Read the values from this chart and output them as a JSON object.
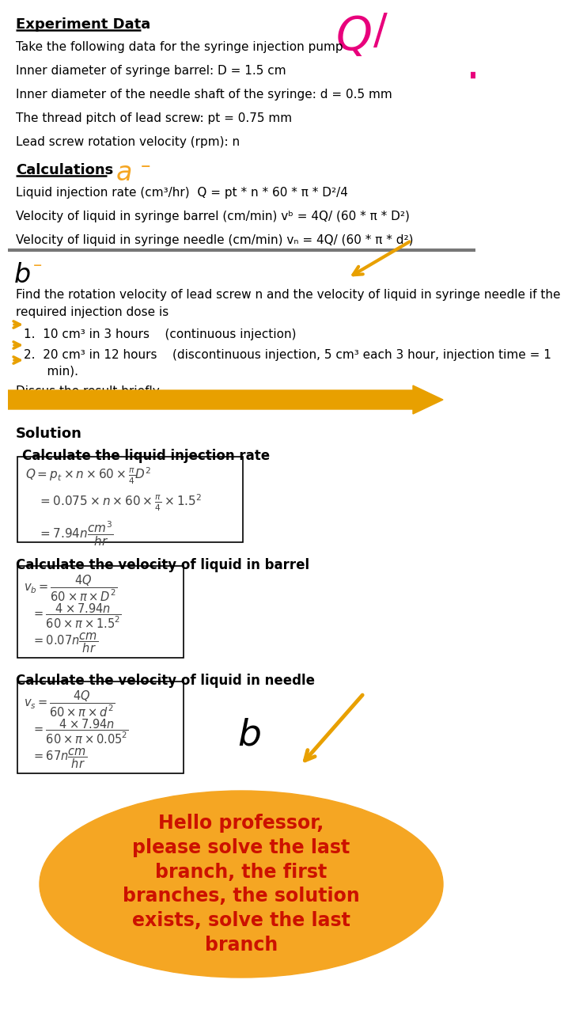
{
  "bg_color": "#ffffff",
  "title": "Experiment Data",
  "line1": "Take the following data for the syringe injection pump",
  "line2": "Inner diameter of syringe barrel: D = 1.5 cm",
  "line3": "Inner diameter of the needle shaft of the syringe: d = 0.5 mm",
  "line4": "The thread pitch of lead screw: pt = 0.75 mm",
  "line5": "Lead screw rotation velocity (rpm): n",
  "calc_label": "Calculations",
  "calc1": "Liquid injection rate (cm³/hr)  Q = pt * n * 60 * π * D²/4",
  "calc2": "Velocity of liquid in syringe barrel (cm/min) vᵇ = 4Q/ (60 * π * D²)",
  "calc3": "Velocity of liquid in syringe needle (cm/min) vₙ = 4Q/ (60 * π * d²)",
  "find_text1": "Find the rotation velocity of lead screw n and the velocity of liquid in syringe needle if the",
  "find_text2": "required injection dose is",
  "item1": "1.  10 cm³ in 3 hours    (continuous injection)",
  "item2": "2.  20 cm³ in 12 hours    (discontinuous injection, 5 cm³ each 3 hour, injection time = 1",
  "item2b": "    min).",
  "discus": "Discus the result briefly.",
  "solution": "Solution",
  "sol1": "Calculate the liquid injection rate",
  "sol2": "Calculate the velocity of liquid in barrel",
  "sol3": "Calculate the velocity of liquid in needle",
  "bubble_text": "Hello professor,\nplease solve the last\nbranch, the first\nbranches, the solution\nexists, solve the last\nbranch",
  "pink_color": "#e8007c",
  "orange_color": "#f5a623",
  "gold_color": "#e8a000",
  "gray_line_color": "#888888",
  "bubble_bg": "#f5a623",
  "bubble_text_color": "#cc1100"
}
